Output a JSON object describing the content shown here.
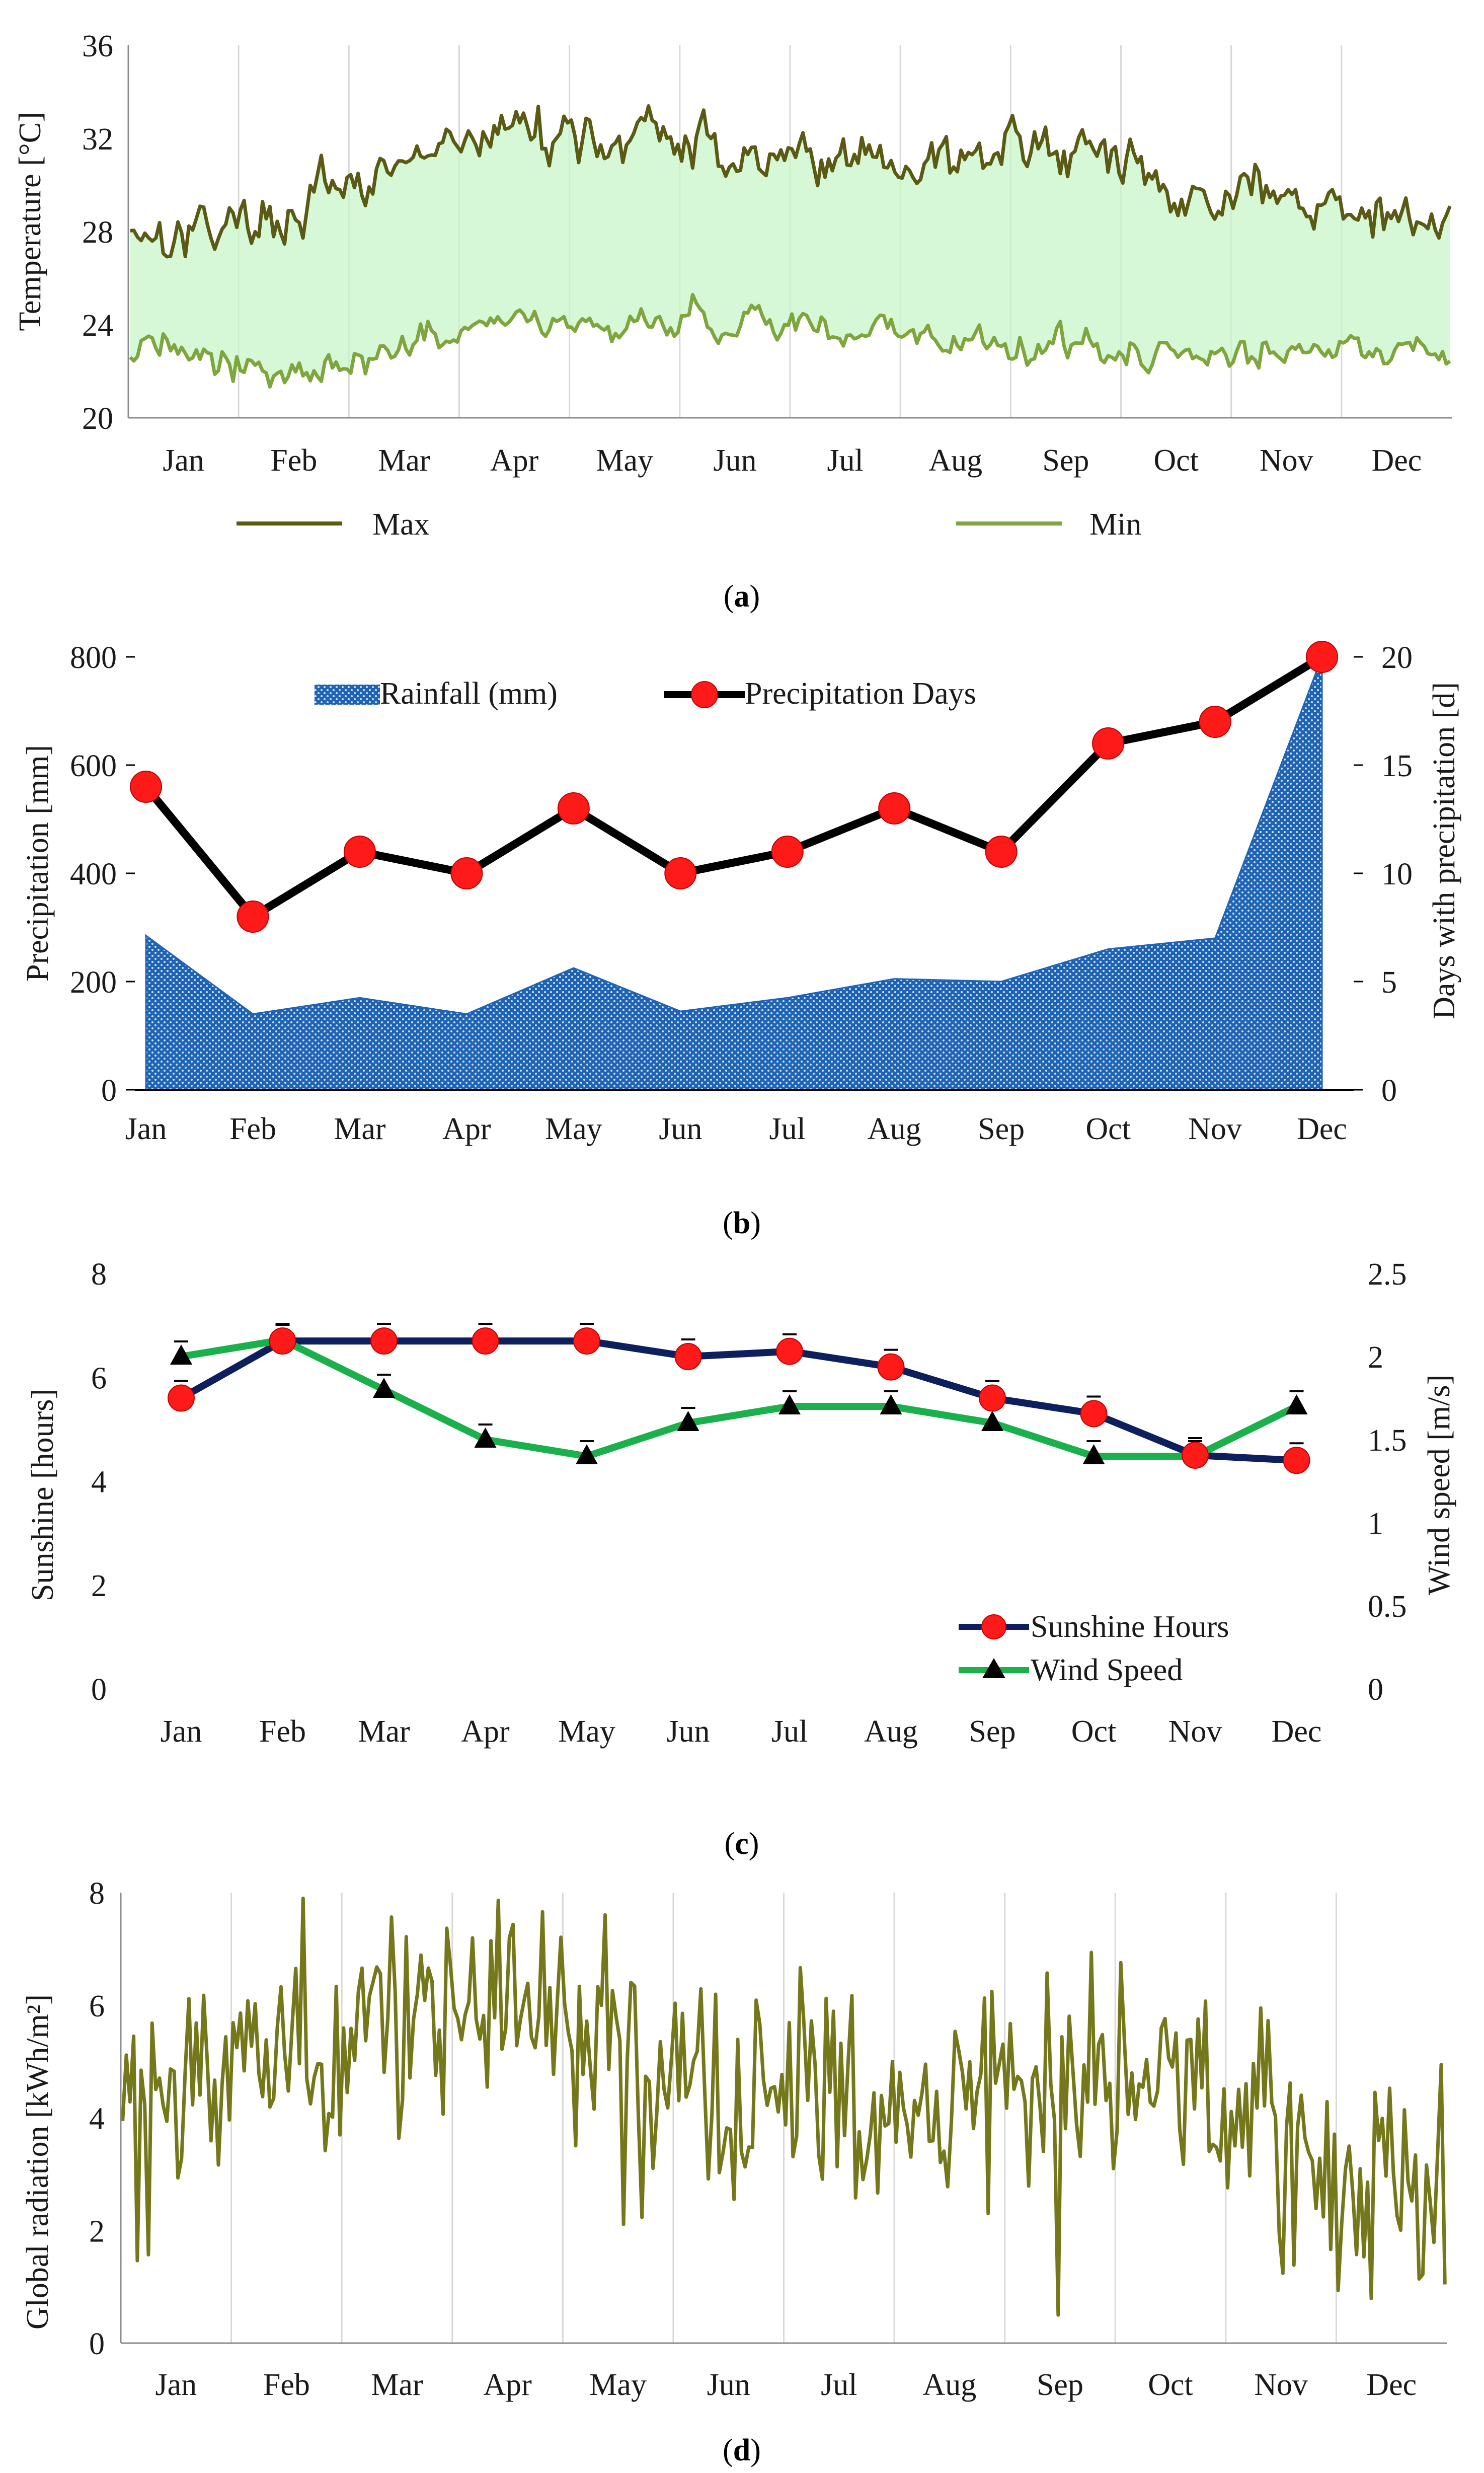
{
  "months": [
    "Jan",
    "Feb",
    "Mar",
    "Apr",
    "May",
    "Jun",
    "Jul",
    "Aug",
    "Sep",
    "Oct",
    "Nov",
    "Dec"
  ],
  "chart_data": [
    {
      "id": "a",
      "type": "line",
      "panel_label": {
        "open": "(",
        "letter": "a",
        "close": ")"
      },
      "ylabel": "Temperature  [°C]",
      "ylim": [
        20,
        36
      ],
      "yticks": [
        20,
        24,
        28,
        32,
        36
      ],
      "xlim": [
        0,
        365
      ],
      "grid": "vertical",
      "fill_between": true,
      "series": [
        {
          "name": "Max",
          "color": "#5a5a14",
          "generator": "temp-max"
        },
        {
          "name": "Min",
          "color": "#7fa63e",
          "generator": "temp-min"
        }
      ],
      "monthly_mean": {
        "Max": [
          28.2,
          28.8,
          30.8,
          32.5,
          32.0,
          31.4,
          31.2,
          31.0,
          31.6,
          29.8,
          29.5,
          28.3
        ],
        "Min": [
          23.2,
          21.8,
          23.2,
          23.9,
          24.2,
          24.1,
          23.8,
          23.3,
          23.1,
          22.7,
          22.8,
          22.8
        ]
      }
    },
    {
      "id": "b",
      "type": "area+line",
      "panel_label": {
        "open": "(",
        "letter": "b",
        "close": ")"
      },
      "ylabel": "Precipitation [mm]",
      "y2label": "Days with precipitation [d]",
      "ylim": [
        0,
        800
      ],
      "yticks": [
        0,
        200,
        400,
        600,
        800
      ],
      "y2lim": [
        0,
        20
      ],
      "y2ticks": [
        0,
        5,
        10,
        15,
        20
      ],
      "series": [
        {
          "name": "Rainfall (mm)",
          "type": "area",
          "axis": "left",
          "color": "#1f63b5",
          "values": [
            285,
            140,
            170,
            140,
            225,
            145,
            170,
            205,
            200,
            260,
            280,
            800
          ]
        },
        {
          "name": "Precipitation Days",
          "type": "line",
          "axis": "right",
          "color": "#000000",
          "marker_color": "#ff0000",
          "values": [
            14,
            8,
            11,
            10,
            13,
            10,
            11,
            13,
            11,
            16,
            17,
            20
          ]
        }
      ]
    },
    {
      "id": "c",
      "type": "line",
      "panel_label": {
        "open": "(",
        "letter": "c",
        "close": ")"
      },
      "ylabel": "Sunshine [hours]",
      "y2label": "Wind speed [m/s]",
      "ylim": [
        0,
        8
      ],
      "yticks": [
        0,
        2,
        4,
        6,
        8
      ],
      "y2lim": [
        0,
        2.5
      ],
      "y2ticks": [
        "0",
        "0.5",
        "1",
        "1.5",
        "2",
        "2.5"
      ],
      "series": [
        {
          "name": "Sunshine Hours",
          "axis": "left",
          "color": "#0d1f5c",
          "marker": "circle",
          "marker_color": "#ff0000",
          "values": [
            5.6,
            6.7,
            6.7,
            6.7,
            6.7,
            6.4,
            6.5,
            6.2,
            5.6,
            5.3,
            4.5,
            4.4
          ]
        },
        {
          "name": "Wind Speed",
          "axis": "right",
          "color": "#1ab04b",
          "marker": "triangle",
          "marker_color": "#000000",
          "values": [
            2.0,
            2.1,
            1.8,
            1.5,
            1.4,
            1.6,
            1.7,
            1.7,
            1.6,
            1.4,
            1.4,
            1.7
          ]
        }
      ]
    },
    {
      "id": "d",
      "type": "line",
      "panel_label": {
        "open": "(",
        "letter": "d",
        "close": ")"
      },
      "ylabel": "Global radiation  [kWh/m²]",
      "ylim": [
        0,
        8
      ],
      "yticks": [
        0,
        2,
        4,
        6,
        8
      ],
      "xlim": [
        0,
        365
      ],
      "grid": "vertical",
      "series": [
        {
          "name": "Global radiation",
          "color": "#75781a",
          "generator": "radiation"
        }
      ],
      "monthly_mean": [
        4.0,
        5.5,
        5.2,
        6.4,
        5.2,
        4.6,
        4.4,
        4.6,
        5.0,
        4.8,
        3.6,
        2.8
      ]
    }
  ]
}
